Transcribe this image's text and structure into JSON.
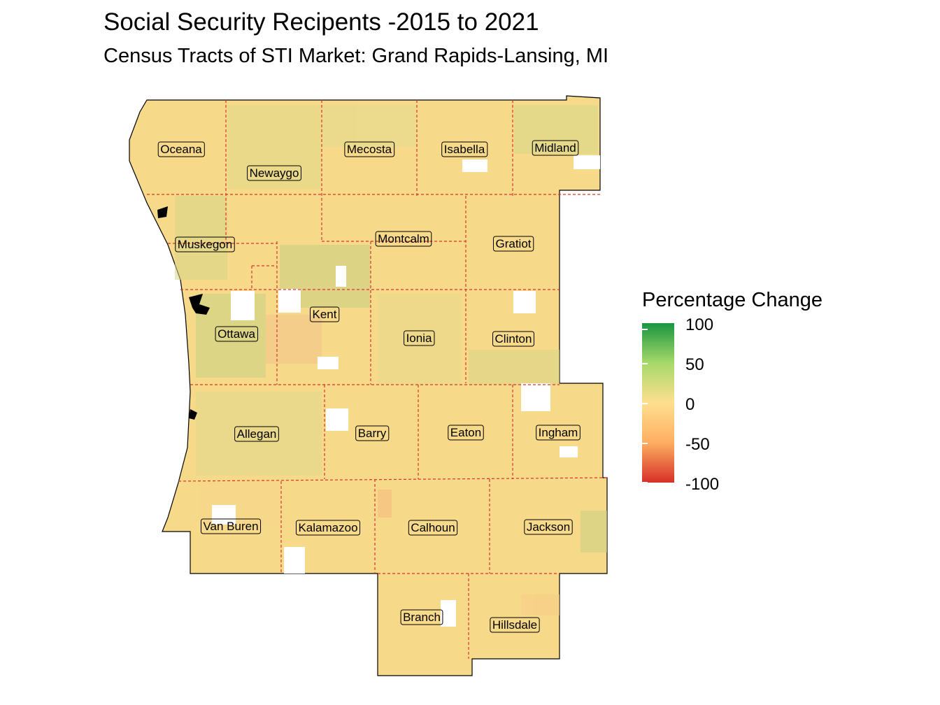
{
  "title": "Social Security Recipents -2015 to 2021",
  "subtitle": "Census Tracts of STI Market: Grand Rapids-Lansing, MI",
  "legend": {
    "title": "Percentage Change",
    "ticks": [
      "100",
      "50",
      "0",
      "-50",
      "-100"
    ],
    "colors": [
      "#1a9641",
      "#a6d96a",
      "#ffdf8f",
      "#fdae61",
      "#d73027"
    ]
  },
  "counties": [
    {
      "name": "Oceana"
    },
    {
      "name": "Newaygo"
    },
    {
      "name": "Mecosta"
    },
    {
      "name": "Isabella"
    },
    {
      "name": "Midland"
    },
    {
      "name": "Muskegon"
    },
    {
      "name": "Montcalm"
    },
    {
      "name": "Gratiot"
    },
    {
      "name": "Kent"
    },
    {
      "name": "Ottawa"
    },
    {
      "name": "Ionia"
    },
    {
      "name": "Clinton"
    },
    {
      "name": "Allegan"
    },
    {
      "name": "Barry"
    },
    {
      "name": "Eaton"
    },
    {
      "name": "Ingham"
    },
    {
      "name": "Van Buren"
    },
    {
      "name": "Kalamazoo"
    },
    {
      "name": "Calhoun"
    },
    {
      "name": "Jackson"
    },
    {
      "name": "Branch"
    },
    {
      "name": "Hillsdale"
    }
  ]
}
